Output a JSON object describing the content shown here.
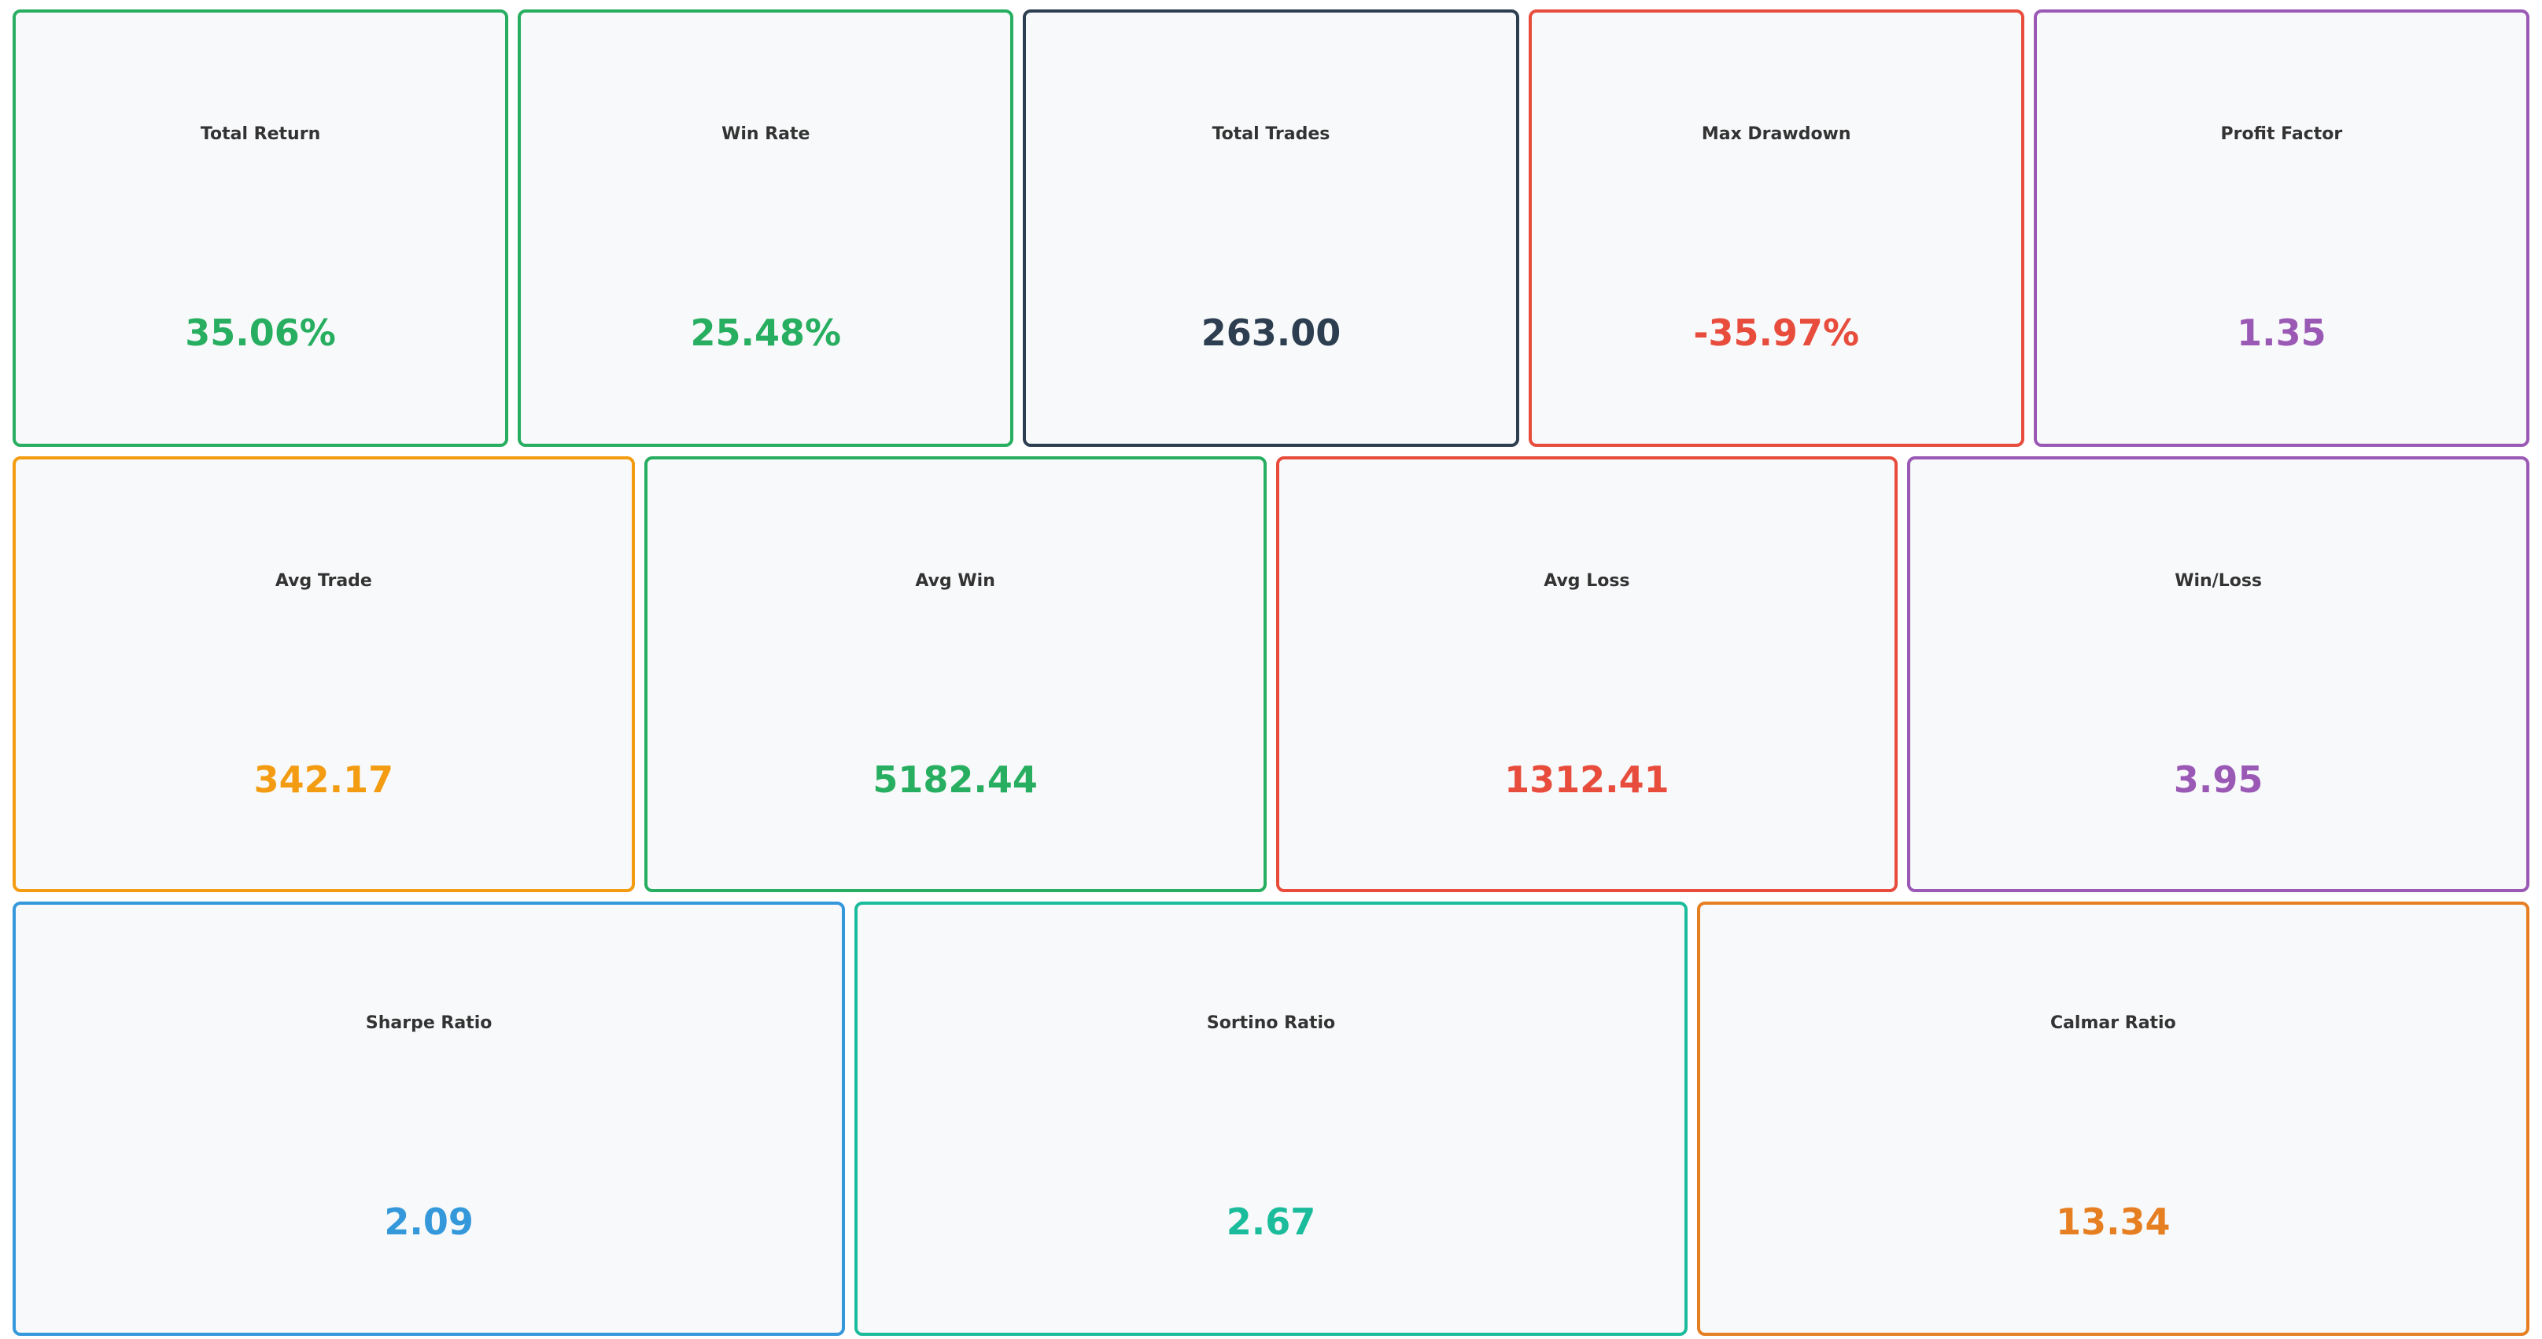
{
  "metrics_row_1": [
    {
      "label": "Total Return",
      "value": "35.06%",
      "color": "#27ae60"
    },
    {
      "label": "Win Rate",
      "value": "25.48%",
      "color": "#27ae60"
    },
    {
      "label": "Total Trades",
      "value": "263.00",
      "color": "#2c3e50"
    },
    {
      "label": "Max Drawdown",
      "value": "-35.97%",
      "color": "#e74c3c"
    },
    {
      "label": "Profit Factor",
      "value": "1.35",
      "color": "#9b59b6"
    }
  ],
  "metrics_row_2": [
    {
      "label": "Avg Trade",
      "value": "342.17",
      "color": "#f39c12"
    },
    {
      "label": "Avg Win",
      "value": "5182.44",
      "color": "#27ae60"
    },
    {
      "label": "Avg Loss",
      "value": "1312.41",
      "color": "#e74c3c"
    },
    {
      "label": "Win/Loss",
      "value": "3.95",
      "color": "#9b59b6"
    }
  ],
  "metrics_row_3": [
    {
      "label": "Sharpe Ratio",
      "value": "2.09",
      "color": "#3498db"
    },
    {
      "label": "Sortino Ratio",
      "value": "2.67",
      "color": "#1abc9c"
    },
    {
      "label": "Calmar Ratio",
      "value": "13.34",
      "color": "#e67e22"
    }
  ]
}
